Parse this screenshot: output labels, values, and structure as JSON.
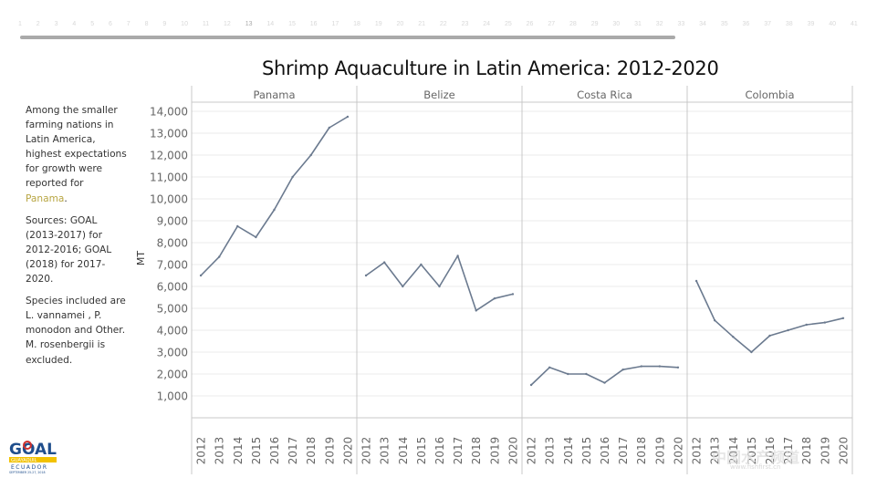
{
  "scroller": {
    "numbers": [
      "1",
      "2",
      "3",
      "4",
      "5",
      "6",
      "7",
      "8",
      "9",
      "10",
      "11",
      "12",
      "13",
      "14",
      "15",
      "16",
      "17",
      "18",
      "19",
      "20",
      "21",
      "22",
      "23",
      "24",
      "25",
      "26",
      "27",
      "28",
      "29",
      "30",
      "31",
      "32",
      "33",
      "34",
      "35",
      "36",
      "37",
      "38",
      "39",
      "40",
      "41"
    ],
    "current": "13"
  },
  "sidebar": {
    "para1_before": "Among the smaller farming nations in Latin America, highest expectations for growth were reported for ",
    "para1_highlight": "Panama",
    "para1_after": ".",
    "para2": "Sources: GOAL (2013-2017) for 2012-2016; GOAL (2018) for 2017-2020.",
    "para3": "Species included are L. vannamei , P. monodon and Other.  M. rosenbergii is excluded."
  },
  "logo": {
    "word": "GOAL",
    "subtitle": "GUAYAQUIL",
    "country": "ECUADOR",
    "dates": "SEPTEMBER 25-27, 2018"
  },
  "watermark": {
    "text": "中国水产频道",
    "url": "www.fishfirst.cn"
  },
  "colors": {
    "line": "#6b7a8f",
    "grid": "#ebebeb",
    "divider": "#c8c8c8",
    "highlight": "#b8a643",
    "axis_text": "#666666"
  },
  "chart_data": {
    "type": "line",
    "title": "Shrimp Aquaculture in Latin America: 2012-2020",
    "xlabel": "",
    "ylabel": "MT",
    "ylim": [
      0,
      14500
    ],
    "yticks": [
      1000,
      2000,
      3000,
      4000,
      5000,
      6000,
      7000,
      8000,
      9000,
      10000,
      11000,
      12000,
      13000,
      14000
    ],
    "ytick_labels": [
      "1,000",
      "2,000",
      "3,000",
      "4,000",
      "5,000",
      "6,000",
      "7,000",
      "8,000",
      "9,000",
      "10,000",
      "11,000",
      "12,000",
      "13,000",
      "14,000"
    ],
    "categories": [
      "2012",
      "2013",
      "2014",
      "2015",
      "2016",
      "2017",
      "2018",
      "2019",
      "2020"
    ],
    "grid": true,
    "legend": "none",
    "panels": [
      {
        "name": "Panama",
        "values": [
          6500,
          7350,
          8750,
          8250,
          9500,
          11000,
          12000,
          13250,
          13750
        ]
      },
      {
        "name": "Belize",
        "values": [
          6500,
          7100,
          6000,
          7000,
          6000,
          7400,
          4900,
          5450,
          5650
        ]
      },
      {
        "name": "Costa Rica",
        "values": [
          1500,
          2300,
          2000,
          2000,
          1600,
          2200,
          2350,
          2350,
          2300
        ]
      },
      {
        "name": "Colombia",
        "values": [
          6250,
          4450,
          3700,
          3000,
          3750,
          4000,
          4250,
          4350,
          4550
        ]
      }
    ]
  }
}
